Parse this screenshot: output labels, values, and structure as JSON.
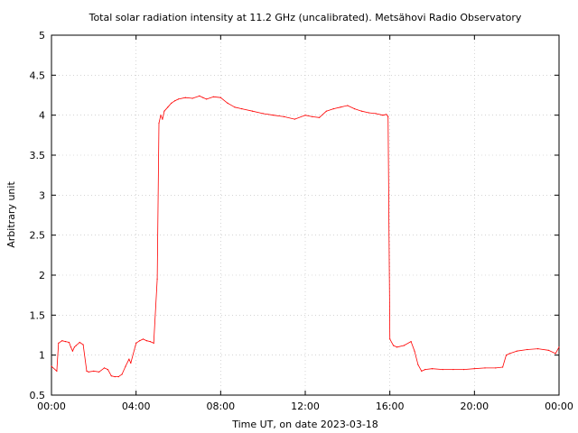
{
  "chart_data": {
    "type": "line",
    "title": "Total solar radiation intensity at 11.2 GHz (uncalibrated). Metsähovi Radio Observatory",
    "xlabel": "Time UT, on date 2023-03-18",
    "ylabel": "Arbitrary unit",
    "xlim": [
      "00:00",
      "24:00"
    ],
    "ylim": [
      0.5,
      5
    ],
    "x_ticks": [
      "00:00",
      "04:00",
      "08:00",
      "12:00",
      "16:00",
      "20:00",
      "00:00"
    ],
    "y_ticks": [
      "0.5",
      "1",
      "1.5",
      "2",
      "2.5",
      "3",
      "3.5",
      "4",
      "4.5",
      "5"
    ],
    "grid": true,
    "line_color": "#ff0000",
    "series": [
      {
        "x": [
          "00:00",
          "00:15",
          "00:20",
          "00:30",
          "00:40",
          "00:50",
          "00:55",
          "01:00",
          "01:05",
          "01:10",
          "01:20",
          "01:30",
          "01:40",
          "01:45",
          "02:00",
          "02:15",
          "02:30",
          "02:40",
          "02:50",
          "03:00",
          "03:10",
          "03:20",
          "03:30",
          "03:40",
          "03:45",
          "04:00",
          "04:10",
          "04:20",
          "04:30",
          "04:40",
          "04:50",
          "05:00",
          "05:05",
          "05:10",
          "05:15",
          "05:20",
          "05:30",
          "05:40",
          "05:50",
          "06:00",
          "06:20",
          "06:40",
          "07:00",
          "07:10",
          "07:20",
          "07:40",
          "08:00",
          "08:20",
          "08:40",
          "09:00",
          "09:30",
          "10:00",
          "10:30",
          "11:00",
          "11:30",
          "12:00",
          "12:20",
          "12:40",
          "13:00",
          "13:20",
          "13:40",
          "14:00",
          "14:20",
          "14:40",
          "15:00",
          "15:20",
          "15:40",
          "15:50",
          "15:55",
          "16:00",
          "16:10",
          "16:20",
          "16:40",
          "17:00",
          "17:10",
          "17:20",
          "17:30",
          "17:40",
          "18:00",
          "18:30",
          "19:00",
          "19:30",
          "20:00",
          "20:30",
          "21:00",
          "21:20",
          "21:30",
          "21:40",
          "22:00",
          "22:30",
          "23:00",
          "23:30",
          "23:50",
          "24:00"
        ],
        "y": [
          0.86,
          0.8,
          1.15,
          1.18,
          1.17,
          1.16,
          1.1,
          1.05,
          1.1,
          1.12,
          1.16,
          1.13,
          0.8,
          0.79,
          0.8,
          0.79,
          0.84,
          0.82,
          0.74,
          0.73,
          0.73,
          0.76,
          0.86,
          0.95,
          0.9,
          1.15,
          1.18,
          1.2,
          1.18,
          1.17,
          1.15,
          1.95,
          3.9,
          4.0,
          3.95,
          4.05,
          4.1,
          4.15,
          4.18,
          4.2,
          4.22,
          4.21,
          4.24,
          4.22,
          4.2,
          4.23,
          4.22,
          4.15,
          4.1,
          4.08,
          4.05,
          4.02,
          4.0,
          3.98,
          3.95,
          4.0,
          3.98,
          3.97,
          4.05,
          4.08,
          4.1,
          4.12,
          4.08,
          4.05,
          4.03,
          4.02,
          4.0,
          4.01,
          3.98,
          1.2,
          1.12,
          1.1,
          1.12,
          1.17,
          1.05,
          0.88,
          0.8,
          0.82,
          0.83,
          0.82,
          0.82,
          0.82,
          0.83,
          0.84,
          0.84,
          0.85,
          1.0,
          1.02,
          1.05,
          1.07,
          1.08,
          1.06,
          1.02,
          1.1
        ]
      }
    ]
  }
}
